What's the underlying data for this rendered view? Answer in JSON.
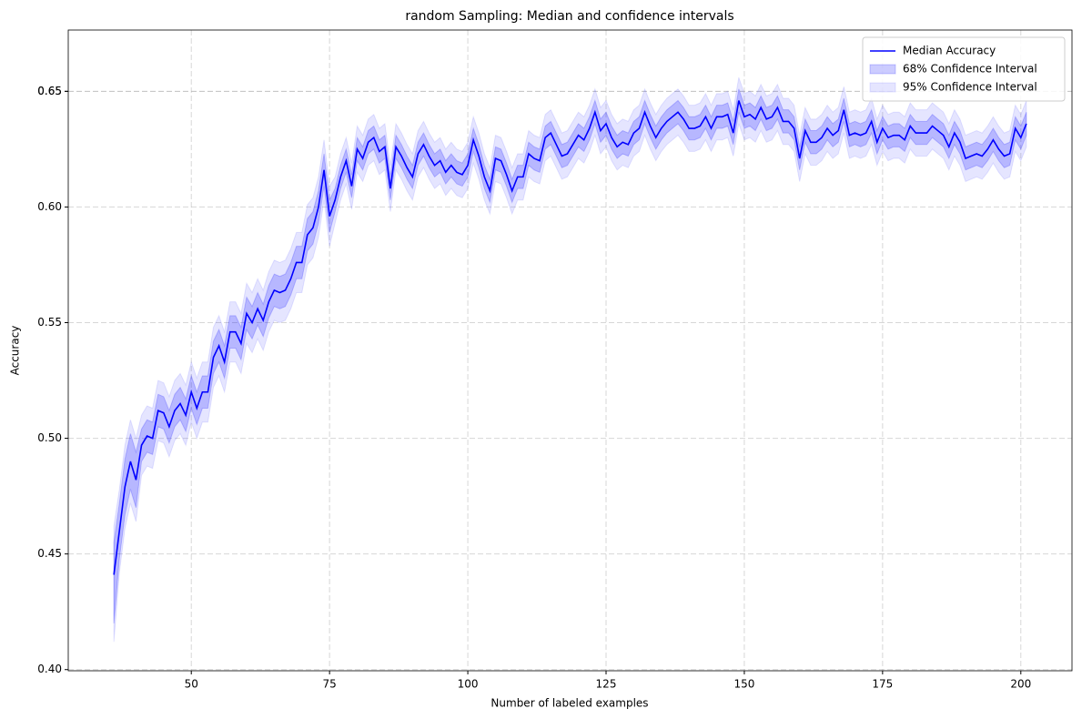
{
  "chart_data": {
    "type": "line",
    "title": "random Sampling: Median and confidence intervals",
    "xlabel": "Number of labeled examples",
    "ylabel": "Accuracy",
    "xlim": [
      27.75,
      209.25
    ],
    "ylim": [
      0.3995,
      0.6765
    ],
    "xticks": [
      50,
      75,
      100,
      125,
      150,
      175,
      200
    ],
    "yticks": [
      {
        "value": 0.4,
        "label": "0.40"
      },
      0.45,
      {
        "value": 0.5,
        "label": "0.50"
      },
      0.55,
      {
        "value": 0.6,
        "label": "0.60"
      },
      0.65,
      {
        "value": 0.65,
        "label": "0.65"
      }
    ],
    "grid": true,
    "legend": "upper right",
    "x": [
      36,
      37,
      38,
      39,
      40,
      41,
      42,
      43,
      44,
      45,
      46,
      47,
      48,
      49,
      50,
      51,
      52,
      53,
      54,
      55,
      56,
      57,
      58,
      59,
      60,
      61,
      62,
      63,
      64,
      65,
      66,
      67,
      68,
      69,
      70,
      71,
      72,
      73,
      74,
      75,
      76,
      77,
      78,
      79,
      80,
      81,
      82,
      83,
      84,
      85,
      86,
      87,
      88,
      89,
      90,
      91,
      92,
      93,
      94,
      95,
      96,
      97,
      98,
      99,
      100,
      101,
      102,
      103,
      104,
      105,
      106,
      107,
      108,
      109,
      110,
      111,
      112,
      113,
      114,
      115,
      116,
      117,
      118,
      119,
      120,
      121,
      122,
      123,
      124,
      125,
      126,
      127,
      128,
      129,
      130,
      131,
      132,
      133,
      134,
      135,
      136,
      137,
      138,
      139,
      140,
      141,
      142,
      143,
      144,
      145,
      146,
      147,
      148,
      149,
      150,
      151,
      152,
      153,
      154,
      155,
      156,
      157,
      158,
      159,
      160,
      161,
      162,
      163,
      164,
      165,
      166,
      167,
      168,
      169,
      170,
      171,
      172,
      173,
      174,
      175,
      176,
      177,
      178,
      179,
      180,
      181,
      182,
      183,
      184,
      185,
      186,
      187,
      188,
      189,
      190,
      191,
      192,
      193,
      194,
      195,
      196,
      197,
      198,
      199,
      200,
      201
    ],
    "series": [
      {
        "name": "Median Accuracy",
        "color": "#0000ff",
        "values": [
          0.441,
          0.46,
          0.479,
          0.49,
          0.482,
          0.497,
          0.501,
          0.5,
          0.512,
          0.511,
          0.505,
          0.512,
          0.515,
          0.51,
          0.52,
          0.513,
          0.52,
          0.52,
          0.535,
          0.54,
          0.533,
          0.546,
          0.546,
          0.541,
          0.554,
          0.55,
          0.556,
          0.551,
          0.559,
          0.564,
          0.563,
          0.564,
          0.569,
          0.576,
          0.576,
          0.588,
          0.591,
          0.6,
          0.616,
          0.596,
          0.603,
          0.613,
          0.62,
          0.609,
          0.625,
          0.621,
          0.628,
          0.63,
          0.624,
          0.626,
          0.608,
          0.626,
          0.622,
          0.617,
          0.613,
          0.623,
          0.627,
          0.622,
          0.618,
          0.62,
          0.615,
          0.618,
          0.615,
          0.614,
          0.618,
          0.629,
          0.622,
          0.613,
          0.607,
          0.621,
          0.62,
          0.614,
          0.607,
          0.613,
          0.613,
          0.623,
          0.621,
          0.62,
          0.63,
          0.632,
          0.627,
          0.622,
          0.623,
          0.627,
          0.631,
          0.629,
          0.634,
          0.641,
          0.633,
          0.636,
          0.63,
          0.626,
          0.628,
          0.627,
          0.632,
          0.634,
          0.641,
          0.635,
          0.63,
          0.634,
          0.637,
          0.639,
          0.641,
          0.638,
          0.634,
          0.634,
          0.635,
          0.639,
          0.634,
          0.639,
          0.639,
          0.64,
          0.632,
          0.646,
          0.639,
          0.64,
          0.638,
          0.643,
          0.638,
          0.639,
          0.643,
          0.637,
          0.637,
          0.634,
          0.621,
          0.633,
          0.628,
          0.628,
          0.63,
          0.634,
          0.631,
          0.633,
          0.642,
          0.631,
          0.632,
          0.631,
          0.632,
          0.637,
          0.628,
          0.634,
          0.63,
          0.631,
          0.631,
          0.629,
          0.635,
          0.632,
          0.632,
          0.632,
          0.635,
          0.633,
          0.631,
          0.626,
          0.632,
          0.628,
          0.621,
          0.622,
          0.623,
          0.622,
          0.625,
          0.629,
          0.625,
          0.622,
          0.623,
          0.634,
          0.63,
          0.636
        ]
      }
    ],
    "bands": [
      {
        "name": "68% Confidence Interval",
        "color": "#0000ff",
        "alpha": 0.2,
        "lower": [
          0.42,
          0.448,
          0.467,
          0.478,
          0.47,
          0.49,
          0.494,
          0.493,
          0.505,
          0.504,
          0.498,
          0.505,
          0.508,
          0.503,
          0.513,
          0.506,
          0.513,
          0.513,
          0.528,
          0.533,
          0.526,
          0.539,
          0.539,
          0.534,
          0.547,
          0.543,
          0.549,
          0.544,
          0.552,
          0.557,
          0.556,
          0.557,
          0.562,
          0.569,
          0.569,
          0.581,
          0.584,
          0.593,
          0.609,
          0.589,
          0.598,
          0.608,
          0.615,
          0.604,
          0.62,
          0.616,
          0.623,
          0.625,
          0.619,
          0.621,
          0.603,
          0.621,
          0.617,
          0.612,
          0.608,
          0.618,
          0.622,
          0.617,
          0.613,
          0.615,
          0.61,
          0.613,
          0.61,
          0.609,
          0.613,
          0.624,
          0.617,
          0.608,
          0.602,
          0.616,
          0.615,
          0.609,
          0.602,
          0.608,
          0.608,
          0.618,
          0.616,
          0.615,
          0.625,
          0.627,
          0.622,
          0.617,
          0.618,
          0.622,
          0.626,
          0.624,
          0.629,
          0.636,
          0.628,
          0.631,
          0.625,
          0.621,
          0.623,
          0.622,
          0.627,
          0.629,
          0.636,
          0.63,
          0.625,
          0.629,
          0.632,
          0.634,
          0.636,
          0.633,
          0.629,
          0.629,
          0.63,
          0.634,
          0.629,
          0.634,
          0.634,
          0.635,
          0.627,
          0.641,
          0.634,
          0.635,
          0.633,
          0.638,
          0.633,
          0.634,
          0.638,
          0.632,
          0.632,
          0.629,
          0.616,
          0.628,
          0.623,
          0.623,
          0.625,
          0.629,
          0.626,
          0.628,
          0.637,
          0.626,
          0.627,
          0.626,
          0.627,
          0.632,
          0.623,
          0.629,
          0.625,
          0.626,
          0.626,
          0.624,
          0.63,
          0.627,
          0.627,
          0.627,
          0.63,
          0.628,
          0.626,
          0.621,
          0.627,
          0.623,
          0.616,
          0.617,
          0.618,
          0.617,
          0.62,
          0.624,
          0.62,
          0.617,
          0.618,
          0.629,
          0.625,
          0.631
        ],
        "upper": [
          0.455,
          0.472,
          0.491,
          0.502,
          0.494,
          0.504,
          0.508,
          0.507,
          0.519,
          0.518,
          0.512,
          0.519,
          0.522,
          0.517,
          0.527,
          0.52,
          0.527,
          0.527,
          0.542,
          0.547,
          0.54,
          0.553,
          0.553,
          0.548,
          0.561,
          0.557,
          0.563,
          0.558,
          0.566,
          0.571,
          0.57,
          0.571,
          0.576,
          0.583,
          0.583,
          0.595,
          0.598,
          0.607,
          0.623,
          0.603,
          0.608,
          0.618,
          0.625,
          0.614,
          0.63,
          0.626,
          0.633,
          0.635,
          0.629,
          0.631,
          0.613,
          0.631,
          0.627,
          0.622,
          0.618,
          0.628,
          0.632,
          0.627,
          0.623,
          0.625,
          0.62,
          0.623,
          0.62,
          0.619,
          0.623,
          0.634,
          0.627,
          0.618,
          0.612,
          0.626,
          0.625,
          0.619,
          0.612,
          0.618,
          0.618,
          0.628,
          0.626,
          0.625,
          0.635,
          0.637,
          0.632,
          0.627,
          0.628,
          0.632,
          0.636,
          0.634,
          0.639,
          0.646,
          0.638,
          0.641,
          0.635,
          0.631,
          0.633,
          0.632,
          0.637,
          0.639,
          0.646,
          0.64,
          0.635,
          0.639,
          0.642,
          0.644,
          0.646,
          0.643,
          0.639,
          0.639,
          0.64,
          0.644,
          0.639,
          0.644,
          0.644,
          0.645,
          0.637,
          0.651,
          0.644,
          0.645,
          0.643,
          0.648,
          0.643,
          0.644,
          0.648,
          0.642,
          0.642,
          0.639,
          0.626,
          0.638,
          0.633,
          0.633,
          0.635,
          0.639,
          0.636,
          0.638,
          0.647,
          0.636,
          0.637,
          0.636,
          0.637,
          0.642,
          0.633,
          0.639,
          0.635,
          0.636,
          0.636,
          0.634,
          0.64,
          0.637,
          0.637,
          0.637,
          0.64,
          0.638,
          0.636,
          0.631,
          0.637,
          0.633,
          0.626,
          0.627,
          0.628,
          0.627,
          0.63,
          0.634,
          0.63,
          0.627,
          0.628,
          0.639,
          0.635,
          0.641
        ]
      },
      {
        "name": "95% Confidence Interval",
        "color": "#0000ff",
        "alpha": 0.1,
        "lower": [
          0.412,
          0.442,
          0.461,
          0.472,
          0.464,
          0.484,
          0.488,
          0.487,
          0.499,
          0.498,
          0.492,
          0.499,
          0.502,
          0.497,
          0.507,
          0.5,
          0.507,
          0.507,
          0.522,
          0.527,
          0.52,
          0.533,
          0.533,
          0.528,
          0.541,
          0.537,
          0.543,
          0.538,
          0.546,
          0.551,
          0.55,
          0.551,
          0.556,
          0.563,
          0.563,
          0.575,
          0.578,
          0.587,
          0.603,
          0.583,
          0.593,
          0.603,
          0.61,
          0.599,
          0.615,
          0.611,
          0.618,
          0.62,
          0.614,
          0.616,
          0.598,
          0.616,
          0.612,
          0.607,
          0.603,
          0.613,
          0.617,
          0.612,
          0.608,
          0.61,
          0.605,
          0.608,
          0.605,
          0.604,
          0.608,
          0.619,
          0.612,
          0.603,
          0.597,
          0.611,
          0.61,
          0.604,
          0.597,
          0.603,
          0.603,
          0.613,
          0.611,
          0.61,
          0.62,
          0.622,
          0.617,
          0.612,
          0.613,
          0.617,
          0.621,
          0.619,
          0.624,
          0.631,
          0.623,
          0.626,
          0.62,
          0.616,
          0.618,
          0.617,
          0.622,
          0.624,
          0.631,
          0.625,
          0.62,
          0.624,
          0.627,
          0.629,
          0.631,
          0.628,
          0.624,
          0.624,
          0.625,
          0.629,
          0.624,
          0.629,
          0.629,
          0.63,
          0.622,
          0.636,
          0.629,
          0.63,
          0.628,
          0.633,
          0.628,
          0.629,
          0.633,
          0.627,
          0.627,
          0.624,
          0.611,
          0.623,
          0.618,
          0.618,
          0.62,
          0.624,
          0.621,
          0.623,
          0.632,
          0.621,
          0.622,
          0.621,
          0.622,
          0.627,
          0.618,
          0.624,
          0.62,
          0.621,
          0.621,
          0.619,
          0.625,
          0.622,
          0.622,
          0.622,
          0.625,
          0.623,
          0.621,
          0.616,
          0.622,
          0.618,
          0.611,
          0.612,
          0.613,
          0.612,
          0.615,
          0.619,
          0.615,
          0.612,
          0.613,
          0.624,
          0.62,
          0.626
        ],
        "upper": [
          0.462,
          0.478,
          0.497,
          0.508,
          0.5,
          0.51,
          0.514,
          0.513,
          0.525,
          0.524,
          0.518,
          0.525,
          0.528,
          0.523,
          0.533,
          0.526,
          0.533,
          0.533,
          0.548,
          0.553,
          0.546,
          0.559,
          0.559,
          0.554,
          0.567,
          0.563,
          0.569,
          0.564,
          0.572,
          0.577,
          0.576,
          0.577,
          0.582,
          0.589,
          0.589,
          0.601,
          0.604,
          0.613,
          0.629,
          0.609,
          0.613,
          0.623,
          0.63,
          0.619,
          0.635,
          0.631,
          0.638,
          0.64,
          0.634,
          0.636,
          0.618,
          0.636,
          0.632,
          0.627,
          0.623,
          0.633,
          0.637,
          0.632,
          0.628,
          0.63,
          0.625,
          0.628,
          0.625,
          0.624,
          0.628,
          0.639,
          0.632,
          0.623,
          0.617,
          0.631,
          0.63,
          0.624,
          0.617,
          0.623,
          0.623,
          0.633,
          0.631,
          0.63,
          0.64,
          0.642,
          0.637,
          0.632,
          0.633,
          0.637,
          0.641,
          0.639,
          0.644,
          0.651,
          0.643,
          0.646,
          0.64,
          0.636,
          0.638,
          0.637,
          0.642,
          0.644,
          0.651,
          0.645,
          0.64,
          0.644,
          0.647,
          0.649,
          0.651,
          0.648,
          0.644,
          0.644,
          0.645,
          0.649,
          0.644,
          0.649,
          0.649,
          0.65,
          0.642,
          0.656,
          0.649,
          0.65,
          0.648,
          0.653,
          0.648,
          0.649,
          0.653,
          0.647,
          0.647,
          0.644,
          0.631,
          0.643,
          0.638,
          0.638,
          0.64,
          0.644,
          0.641,
          0.643,
          0.652,
          0.641,
          0.642,
          0.641,
          0.642,
          0.647,
          0.638,
          0.644,
          0.64,
          0.641,
          0.641,
          0.639,
          0.645,
          0.642,
          0.642,
          0.642,
          0.645,
          0.643,
          0.641,
          0.636,
          0.642,
          0.638,
          0.631,
          0.632,
          0.633,
          0.632,
          0.635,
          0.639,
          0.635,
          0.632,
          0.633,
          0.644,
          0.64,
          0.646
        ]
      }
    ]
  }
}
